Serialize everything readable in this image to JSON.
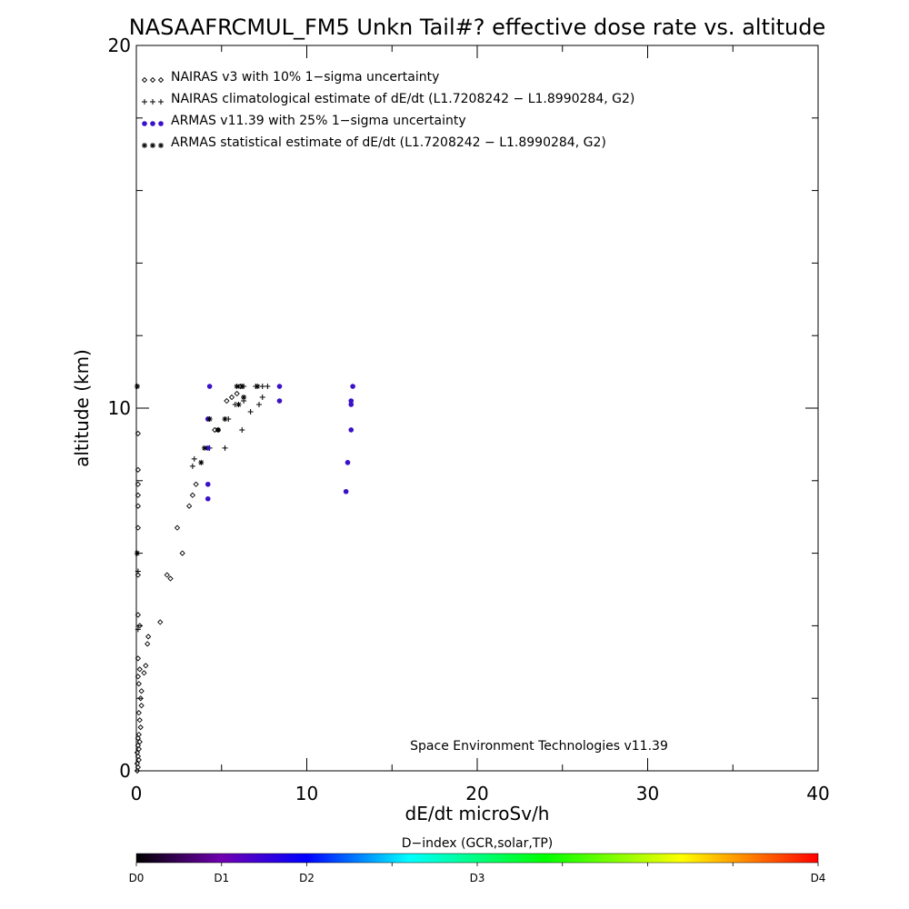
{
  "chart_data": {
    "type": "scatter",
    "title": "NASAAFRCMUL_FM5 Unkn Tail#? effective dose rate vs. altitude",
    "xlabel": "dE/dt microSv/h",
    "ylabel": "altitude (km)",
    "xlim": [
      0,
      40
    ],
    "ylim": [
      0,
      20
    ],
    "x_ticks": [
      0,
      10,
      20,
      30,
      40
    ],
    "y_ticks": [
      0,
      10,
      20
    ],
    "x_minor_step": 5,
    "y_minor_step": 2,
    "grid": false,
    "legend_position": "top-left",
    "annotation": "Space Environment Technologies v11.39",
    "colorbar": {
      "label": "D−index (GCR,solar,TP)",
      "ticks": [
        {
          "label": "D0",
          "value": 0
        },
        {
          "label": "D1",
          "value": 0.125
        },
        {
          "label": "D2",
          "value": 0.25
        },
        {
          "label": "D3",
          "value": 0.5
        },
        {
          "label": "D4",
          "value": 1.0
        }
      ],
      "colors": [
        "#000000",
        "#7000b0",
        "#0000ff",
        "#00ffff",
        "#00ff00",
        "#ffff00",
        "#ff0000"
      ]
    },
    "series": [
      {
        "name": "NAIRAS v3 with 10% 1−sigma uncertainty",
        "marker": "diamond",
        "color": "#000000",
        "points": [
          [
            0.05,
            0.0
          ],
          [
            0.1,
            0.1
          ],
          [
            0.05,
            0.2
          ],
          [
            0.15,
            0.3
          ],
          [
            0.1,
            0.4
          ],
          [
            0.05,
            0.5
          ],
          [
            0.15,
            0.6
          ],
          [
            0.1,
            0.7
          ],
          [
            0.2,
            0.8
          ],
          [
            0.1,
            0.9
          ],
          [
            0.15,
            1.0
          ],
          [
            0.25,
            1.2
          ],
          [
            0.2,
            1.4
          ],
          [
            0.15,
            1.6
          ],
          [
            0.3,
            1.8
          ],
          [
            0.25,
            2.0
          ],
          [
            0.3,
            2.2
          ],
          [
            0.15,
            2.4
          ],
          [
            0.1,
            2.6
          ],
          [
            0.45,
            2.7
          ],
          [
            0.55,
            2.9
          ],
          [
            0.2,
            2.8
          ],
          [
            0.1,
            3.1
          ],
          [
            0.65,
            3.5
          ],
          [
            0.7,
            3.7
          ],
          [
            1.4,
            4.1
          ],
          [
            0.2,
            4.0
          ],
          [
            0.1,
            4.3
          ],
          [
            2.0,
            5.3
          ],
          [
            1.8,
            5.4
          ],
          [
            0.1,
            5.4
          ],
          [
            2.7,
            6.0
          ],
          [
            2.4,
            6.7
          ],
          [
            0.1,
            6.7
          ],
          [
            3.1,
            7.3
          ],
          [
            3.3,
            7.6
          ],
          [
            3.5,
            7.9
          ],
          [
            0.1,
            7.3
          ],
          [
            0.1,
            7.6
          ],
          [
            0.1,
            7.9
          ],
          [
            4.6,
            9.4
          ],
          [
            4.8,
            9.4
          ],
          [
            5.3,
            10.2
          ],
          [
            5.6,
            10.3
          ],
          [
            5.9,
            10.4
          ],
          [
            6.1,
            10.6
          ],
          [
            0.1,
            8.3
          ],
          [
            0.1,
            9.3
          ]
        ]
      },
      {
        "name": "NAIRAS climatological estimate of dE/dt (L1.7208242 − L1.8990284, G2)",
        "marker": "plus",
        "color": "#000000",
        "points": [
          [
            0.1,
            3.9
          ],
          [
            0.1,
            5.5
          ],
          [
            3.3,
            8.4
          ],
          [
            3.4,
            8.6
          ],
          [
            4.3,
            8.9
          ],
          [
            4.3,
            9.7
          ],
          [
            5.2,
            8.9
          ],
          [
            5.4,
            9.7
          ],
          [
            6.2,
            9.4
          ],
          [
            5.8,
            10.1
          ],
          [
            6.3,
            10.2
          ],
          [
            6.7,
            9.9
          ],
          [
            7.2,
            10.1
          ],
          [
            7.4,
            10.3
          ],
          [
            6.3,
            10.6
          ],
          [
            7.0,
            10.6
          ],
          [
            7.4,
            10.6
          ],
          [
            7.7,
            10.6
          ]
        ]
      },
      {
        "name": "ARMAS v11.39 with 25% 1−sigma uncertainty",
        "marker": "dot",
        "color": "#3a10c8",
        "points": [
          [
            4.2,
            7.5
          ],
          [
            4.2,
            7.9
          ],
          [
            4.2,
            8.9
          ],
          [
            4.2,
            9.7
          ],
          [
            4.3,
            10.6
          ],
          [
            8.4,
            10.2
          ],
          [
            8.4,
            10.6
          ],
          [
            12.3,
            7.7
          ],
          [
            12.4,
            8.5
          ],
          [
            12.6,
            9.4
          ],
          [
            12.6,
            10.1
          ],
          [
            12.6,
            10.2
          ],
          [
            12.7,
            10.6
          ]
        ]
      },
      {
        "name": "ARMAS statistical estimate of dE/dt (L1.7208242 − L1.8990284, G2)",
        "marker": "asterisk",
        "color": "#000000",
        "points": [
          [
            0.05,
            10.6
          ],
          [
            0.05,
            6.0
          ],
          [
            3.8,
            8.5
          ],
          [
            4.0,
            8.9
          ],
          [
            4.8,
            9.4
          ],
          [
            5.2,
            9.7
          ],
          [
            6.0,
            10.1
          ],
          [
            6.3,
            10.3
          ],
          [
            5.9,
            10.6
          ],
          [
            6.2,
            10.6
          ],
          [
            7.1,
            10.6
          ],
          [
            4.3,
            9.7
          ]
        ]
      }
    ]
  }
}
